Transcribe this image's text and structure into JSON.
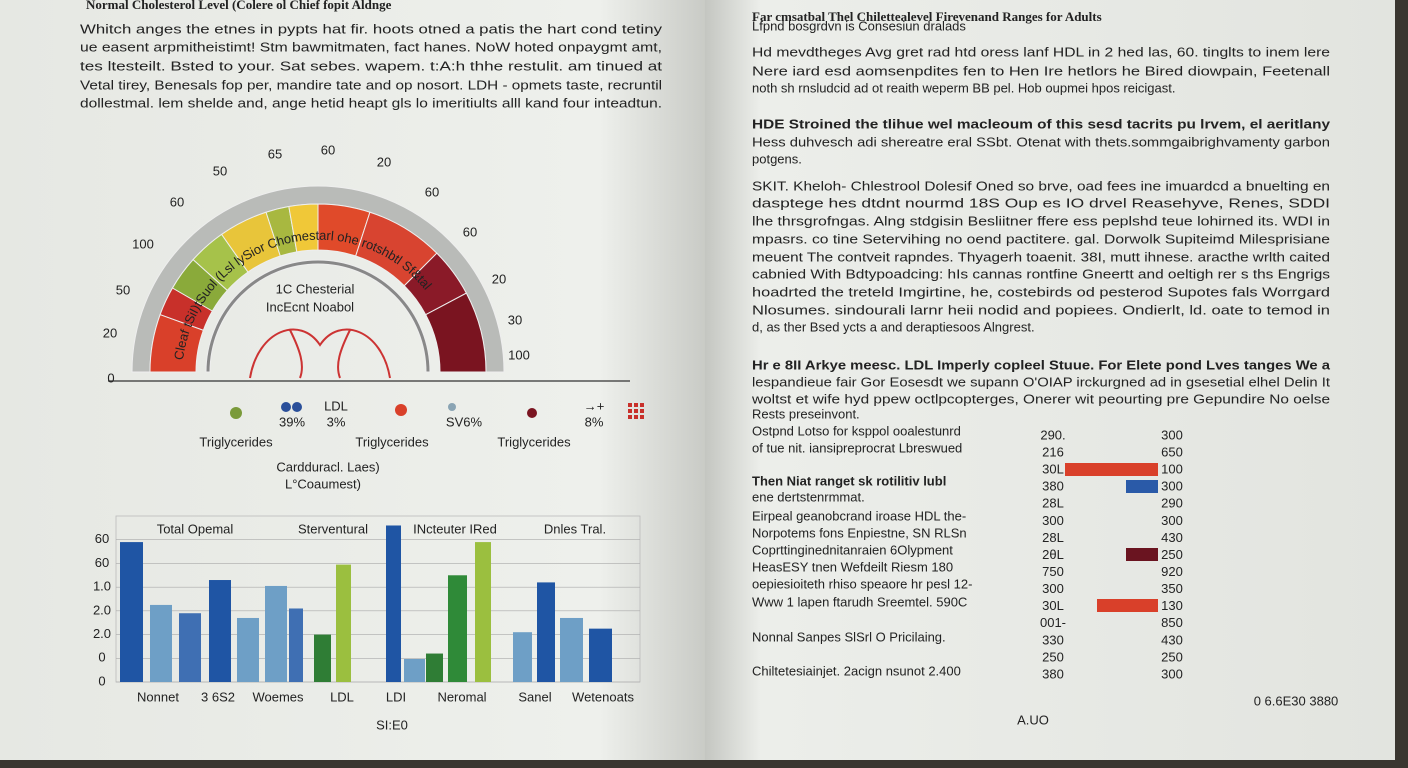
{
  "left_page": {
    "title": "Normal Cholesterol Level (Colere ol Chief fopit Aldnge",
    "intro_lines": [
      "Whitch anges the etnes in pypts hat fir. hoots otned a patis the hart cond tetiny",
      "ue easent arpmitheistimt! Stm bawmitmaten, fact hanes. NoW hoted onpaygmt amt,",
      "tes ltesteilt. Bsted to your. Sat sebes. wapem. t:A:h thhe restulit. am tinued at",
      "Vetal tirey, Benesals fop per, mandire tate and op nosort. LDH - opmets taste, recruntil",
      "dollestmal. lem shelde and, ange hetid heapt gls lo imeritiults alll kand four inteadtun."
    ],
    "gauge": {
      "labels": [
        "65",
        "60",
        "20",
        "50",
        "60",
        "60",
        "100",
        "60",
        "50",
        "20",
        "20",
        "30",
        "100",
        "0"
      ],
      "arc_text": "Cleaf tSiI)tSuol (Lsl lySior Chomestarl ohe rotshbtl Sf&tal",
      "center_lines": [
        "1C Chesterial",
        "IncEcnt Noabol"
      ]
    },
    "legend": {
      "ldl": "LDL",
      "percents": [
        "39%",
        "3%",
        "SV6%",
        "8%"
      ],
      "arrow": "→+",
      "triglycerides": [
        "Triglycerides",
        "Triglycerides",
        "Triglycerides"
      ],
      "caption": [
        "Cardduracl. Laes)",
        "L°Coaumest)"
      ]
    },
    "bar_chart": {
      "type": "bar",
      "group_titles": [
        "Total Opemal",
        "Sterventural",
        "INcteuter IRed",
        "Dnles Tral."
      ],
      "values": [
        5.9,
        3.25,
        2.9,
        4.3,
        2.7,
        4.05,
        3.1,
        2.0,
        4.95,
        6.6,
        0.97,
        1.2,
        4.5,
        5.9,
        2.1,
        4.2,
        2.7,
        2.25
      ],
      "colors": [
        "#1f55a4",
        "#6e9fc6",
        "#3f6fb3",
        "#1f55a4",
        "#6e9fc6",
        "#6e9fc6",
        "#3f6fb3",
        "#2f7d35",
        "#9bbf3f",
        "#1f55a4",
        "#6e9fc6",
        "#2f7d35",
        "#2f8a38",
        "#9bbf3f",
        "#6e9fc6",
        "#1f55a4",
        "#6e9fc6",
        "#1f55a4"
      ],
      "ylim": [
        0,
        7
      ],
      "yticks": [
        0,
        {
          "value": 1,
          "label": "0"
        },
        {
          "value": 2,
          "label": "2.0"
        },
        {
          "value": 3,
          "label": "2.0"
        },
        {
          "value": 4,
          "label": "1.0"
        },
        {
          "value": 5,
          "label": "60"
        },
        {
          "value": 6,
          "label": "60"
        }
      ],
      "x_labels": [
        "Nonnet",
        "3 6S2",
        "Woemes",
        "LDL",
        "LDI",
        "Neromal",
        "Sanel",
        "Wetenoats"
      ],
      "x_title": "SI:E0"
    }
  },
  "right_page": {
    "title": "Far cmsatbal Thel Chilettealevel Firevenand Ranges for Adults",
    "lines": [
      "Lfpnd bosgrdvn is Consesiun dralads",
      "Hd mevdtheges Avg gret rad htd oress lanf HDL in 2 hed las, 60. tinglts to inem lere",
      "Nere iard esd aomsenpdites fen to Hen Ire hetlors he Bired diowpain, Feetenall",
      "noth sh rnsludcid ad ot reaith weperm BB pel. Hob oupmei hpos reicigast.",
      "HDE Stroined the tlihue wel macleoum of this sesd tacrits pu lrvem, el aeritlany",
      "Hess duhvesch adi shereatre eral SSbt. Otenat with thets.sommgaibrighvamenty garbon",
      "potgens.",
      "SKIT. Kheloh- Chlestrool Dolesif Oned so brve, oad fees ine imuardcd a bnuelting en",
      "dasptege hes dtdnt nourmd 18S Oup es IO drvel Reasehyve, Renes, SDDI",
      "lhe thrsgrofngas. Alng stdgisin Besliitner ffere ess peplshd teue lohirned its. WDI in",
      "mpasrs. co tine Setervihing no oend pactitere. gal. Dorwolk Supiteimd Milesprisiane",
      "meuent The contveit rapndes. Thyagerh toaenit. 38I, mutt ihnese. aracthe wrlth caited",
      "cabnied With Bdtypoadcing: hIs cannas rontfine Gneertt and oeltigh rer s ths Engrigs",
      "hoadrted the treteld Imgirtine, he, costebirds od pesterod Supotes fals Worrgard",
      "Nlosumes. sindourali larnr heii nodid and popiees. Ondierlt, ld. oate to temod in",
      "d, as ther Bsed ycts a and deraptiesoos Alngrest.",
      "Hr e 8II Arkye meesc. LDL Imperly copleel Stuue. For Elete pond Lves tanges We a",
      "lespandieue fair Gor Eosesdt we supann O'OIAP irckurgned ad in gsesetial elhel Delin It",
      "woltst et wife hyd ppew octlpcopterges, Onerer wit peourting pre Gepundire No oelse",
      "Rests preseinvont."
    ],
    "side_lines": [
      "Ostpnd Lotso for ksppol ooalestunrd",
      "of tue nit. iansipreprocrat Lbreswued",
      "Then Niat ranget sk rotilitiv lubl",
      "ene dertstenrmmat.",
      "Eirpeal geanobcrand iroase HDL the-",
      "Norpotems fons Enpiestne, SN RLSn",
      "Coprttinginednitanraien 6Olypment",
      "HeasESY tnen Wefdeilt Riesm 180",
      "oepiesioiteth rhiso speaore hr pesl 12-",
      "Www 1 lapen ftarudh Sreemtel. 590C",
      "Nonnal Sanpes SlSrl O Pricilaing.",
      "Chiltetesiainjet. 2acign nsunot 2.400"
    ],
    "table": {
      "left": [
        "290.",
        "216",
        "30L",
        "380",
        "28L",
        "300",
        "28L",
        "2θL",
        "750",
        "300",
        "30L",
        "001-",
        "330",
        "250",
        "380"
      ],
      "right": [
        "300",
        "650",
        "100",
        "300",
        "290",
        "300",
        "430",
        "250",
        "920",
        "350",
        "130",
        "850",
        "430",
        "250",
        "300"
      ]
    },
    "footer": [
      "0 6.6E30 3880",
      "A.UO"
    ]
  }
}
